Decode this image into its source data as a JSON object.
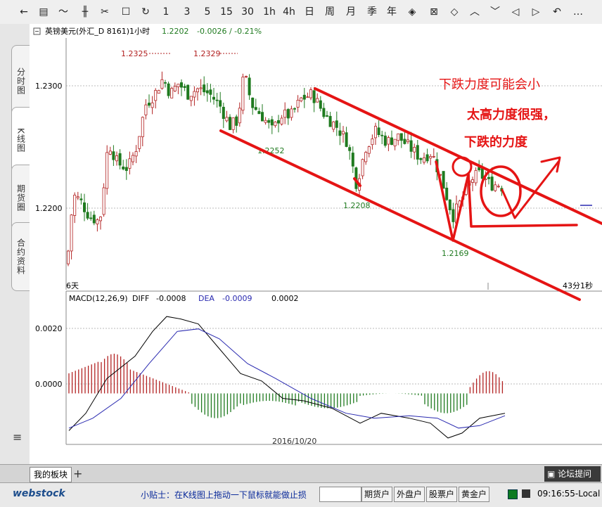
{
  "toolbar": {
    "items": [
      {
        "name": "back-arrow-icon",
        "glyph": "←"
      },
      {
        "name": "list-icon",
        "glyph": "▤"
      },
      {
        "name": "line-chart-icon",
        "glyph": "〜"
      },
      {
        "name": "kline-icon",
        "glyph": "╫"
      },
      {
        "name": "scissors-icon",
        "glyph": "✂"
      },
      {
        "name": "square-icon",
        "glyph": "☐"
      },
      {
        "name": "refresh-icon",
        "glyph": "↻"
      },
      {
        "name": "period-1",
        "glyph": "1"
      },
      {
        "name": "period-3",
        "glyph": "3"
      },
      {
        "name": "period-5",
        "glyph": "5"
      },
      {
        "name": "period-15",
        "glyph": "15"
      },
      {
        "name": "period-30",
        "glyph": "30"
      },
      {
        "name": "period-1h",
        "glyph": "1h"
      },
      {
        "name": "period-4h",
        "glyph": "4h"
      },
      {
        "name": "period-day",
        "glyph": "日"
      },
      {
        "name": "period-week",
        "glyph": "周"
      },
      {
        "name": "period-month",
        "glyph": "月"
      },
      {
        "name": "period-season",
        "glyph": "季"
      },
      {
        "name": "period-year",
        "glyph": "年"
      },
      {
        "name": "zoom-fit-icon",
        "glyph": "◈"
      },
      {
        "name": "cross-icon",
        "glyph": "⊠"
      },
      {
        "name": "zoom-in-icon",
        "glyph": "◇"
      },
      {
        "name": "chevron-up-icon",
        "glyph": "︿"
      },
      {
        "name": "chevron-down-icon",
        "glyph": "﹀"
      },
      {
        "name": "arrow-left-icon",
        "glyph": "◁"
      },
      {
        "name": "arrow-right-icon",
        "glyph": "▷"
      },
      {
        "name": "undo-icon",
        "glyph": "↶"
      },
      {
        "name": "more-icon",
        "glyph": "…"
      }
    ]
  },
  "sidetabs": [
    "分时图",
    "K线图",
    "期货圈",
    "合约资料"
  ],
  "sidetab_menu_icon": "≡",
  "chart_header": {
    "symbol": "英镑美元(外汇_D 8161)1小时",
    "price": "1.2202",
    "change": "-0.0026 / -0.21%"
  },
  "macd_header": {
    "label": "MACD(12,26,9)",
    "diff_label": "DIFF",
    "diff": "-0.0008",
    "dea_label": "DEA",
    "dea": "-0.0009",
    "macd": "0.0002"
  },
  "price_panel": {
    "yticks": [
      "1.2300",
      "1.2200"
    ],
    "left_label": "6天",
    "right_label": "43分1秒",
    "annotations": [
      "1.2325",
      "1.2329",
      "1.2252",
      "1.2208",
      "1.2169"
    ],
    "handwriting": [
      "下跌力度可能会小",
      "太高力度很强，",
      "下跌的力度"
    ]
  },
  "macd_panel": {
    "yticks": [
      "0.0020",
      "0.0000"
    ],
    "date_label": "2016/10/20"
  },
  "bottom": {
    "tab": "我的板块",
    "add": "+",
    "forum": "论坛提问"
  },
  "status": {
    "logo": "webstock",
    "tip": "小贴士：在K线图上拖动一下鼠标就能做止损",
    "buttons": [
      "期货户",
      "外盘户",
      "股票户",
      "黄金户"
    ],
    "time": "09:16:55-Local"
  },
  "colors": {
    "up": "#b22222",
    "down": "#1f7a1f",
    "ink": "#e01010",
    "dea": "#2a2ab0"
  },
  "chart_data": {
    "type": "candlestick",
    "title": "英镑美元(外汇_D 8161)1小时",
    "ylim": [
      1.212,
      1.235
    ],
    "last": 1.2202,
    "labeled_extremes": [
      {
        "label": "1.2325",
        "value": 1.2325,
        "kind": "high"
      },
      {
        "label": "1.2329",
        "value": 1.2329,
        "kind": "high"
      },
      {
        "label": "1.2252",
        "value": 1.2252,
        "kind": "low"
      },
      {
        "label": "1.2208",
        "value": 1.2208,
        "kind": "low"
      },
      {
        "label": "1.2169",
        "value": 1.2169,
        "kind": "low"
      }
    ],
    "series": [
      {
        "name": "MACD(12,26,9)",
        "values": [
          -0.0008,
          -0.0009,
          0.0002
        ]
      }
    ],
    "x_tick": "2016/10/20"
  }
}
